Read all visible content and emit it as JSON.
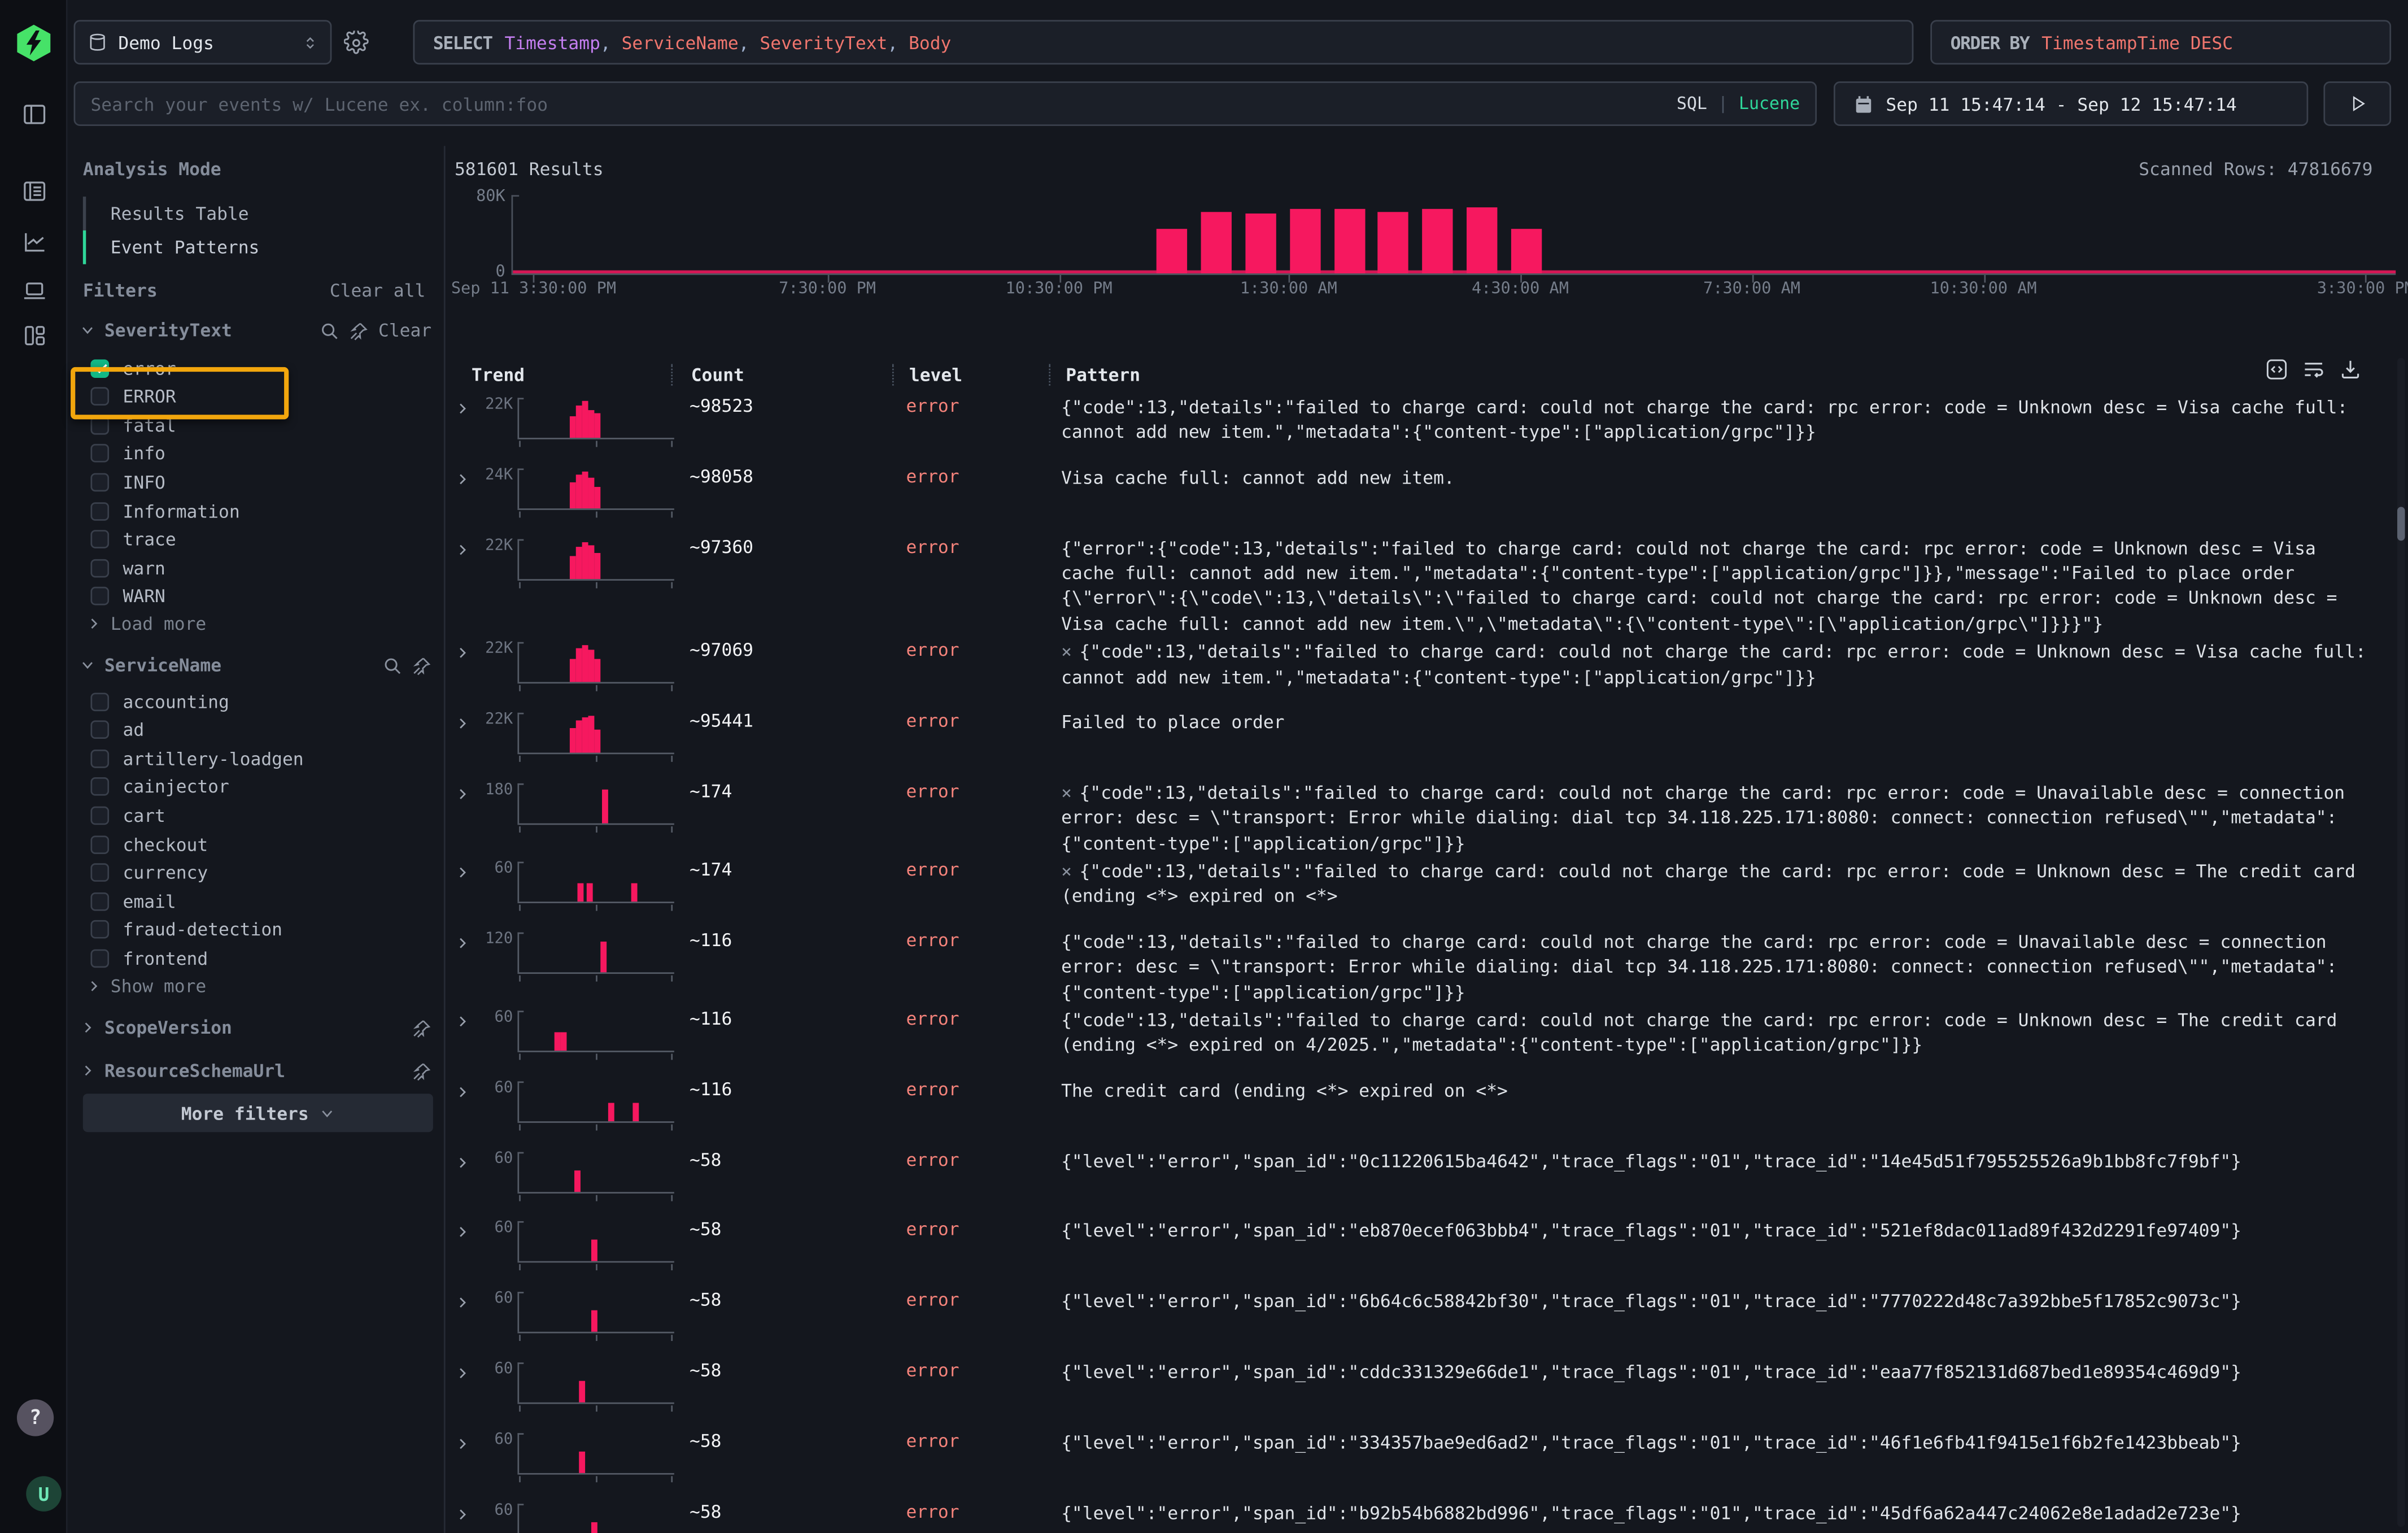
{
  "topbar": {
    "source_label": "Demo Logs",
    "select_keyword": "SELECT",
    "select_separator": ", ",
    "select_columns": [
      {
        "text": "Timestamp",
        "color": "#c47ef0"
      },
      {
        "text": "ServiceName",
        "color": "#f0766e"
      },
      {
        "text": "SeverityText",
        "color": "#f0766e"
      },
      {
        "text": "Body",
        "color": "#f0766e"
      }
    ],
    "orderby_keyword": "ORDER BY",
    "orderby_value": "TimestampTime DESC",
    "search_placeholder": "Search your events w/ Lucene ex. column:foo",
    "lang_sql": "SQL",
    "lang_divider": "|",
    "lang_lucene": "Lucene",
    "date_range": "Sep 11 15:47:14 - Sep 12 15:47:14"
  },
  "rail": {
    "icons": [
      "sidebar-toggle",
      "logs-search",
      "chart-explorer",
      "client-sessions",
      "dashboards"
    ],
    "help_label": "?",
    "avatar_label": "U"
  },
  "left_panel": {
    "analysis_title": "Analysis Mode",
    "mode_items": [
      {
        "label": "Results Table",
        "active": false
      },
      {
        "label": "Event Patterns",
        "active": true
      }
    ],
    "filters_title": "Filters",
    "clear_all": "Clear all",
    "severity": {
      "name": "SeverityText",
      "clear_label": "Clear",
      "more_label": "Load more",
      "options": [
        {
          "label": "error",
          "checked": true
        },
        {
          "label": "ERROR",
          "checked": false
        },
        {
          "label": "fatal",
          "checked": false
        },
        {
          "label": "info",
          "checked": false
        },
        {
          "label": "INFO",
          "checked": false
        },
        {
          "label": "Information",
          "checked": false
        },
        {
          "label": "trace",
          "checked": false
        },
        {
          "label": "warn",
          "checked": false
        },
        {
          "label": "WARN",
          "checked": false
        }
      ]
    },
    "service": {
      "name": "ServiceName",
      "more_label": "Show more",
      "options": [
        {
          "label": "accounting",
          "checked": false
        },
        {
          "label": "ad",
          "checked": false
        },
        {
          "label": "artillery-loadgen",
          "checked": false
        },
        {
          "label": "cainjector",
          "checked": false
        },
        {
          "label": "cart",
          "checked": false
        },
        {
          "label": "checkout",
          "checked": false
        },
        {
          "label": "currency",
          "checked": false
        },
        {
          "label": "email",
          "checked": false
        },
        {
          "label": "fraud-detection",
          "checked": false
        },
        {
          "label": "frontend",
          "checked": false
        }
      ]
    },
    "scope": {
      "name": "ScopeVersion"
    },
    "resource": {
      "name": "ResourceSchemaUrl"
    },
    "more_filters": "More filters"
  },
  "results": {
    "count_label": "581601 Results",
    "scanned_label": "Scanned Rows: 47816679"
  },
  "chart_data": {
    "type": "bar",
    "title": "581601 Results",
    "xlabel": "",
    "ylabel": "",
    "ylim": [
      0,
      80000
    ],
    "y_ticks": [
      "80K",
      "0"
    ],
    "grid": false,
    "legend": "none",
    "bar_color": "#f6185f",
    "x_ticks": [
      {
        "label": "Sep 11 3:30:00 PM",
        "pos": 1.1
      },
      {
        "label": "7:30:00 PM",
        "pos": 16.7
      },
      {
        "label": "10:30:00 PM",
        "pos": 29.0
      },
      {
        "label": "1:30:00 AM",
        "pos": 41.2
      },
      {
        "label": "4:30:00 AM",
        "pos": 53.5
      },
      {
        "label": "7:30:00 AM",
        "pos": 65.8
      },
      {
        "label": "10:30:00 AM",
        "pos": 78.1
      },
      {
        "label": "3:30:00 PM",
        "pos": 98.4
      }
    ],
    "bars": [
      {
        "x": "Sep 11 11:45 PM",
        "value": 46000,
        "pos": 34.2
      },
      {
        "x": "Sep 12 12:20 AM",
        "value": 63000,
        "pos": 36.55
      },
      {
        "x": "Sep 12 12:55 AM",
        "value": 61000,
        "pos": 38.9
      },
      {
        "x": "Sep 12 1:30 AM",
        "value": 66000,
        "pos": 41.25
      },
      {
        "x": "Sep 12 2:05 AM",
        "value": 66000,
        "pos": 43.6
      },
      {
        "x": "Sep 12 2:40 AM",
        "value": 63000,
        "pos": 45.95
      },
      {
        "x": "Sep 12 3:15 AM",
        "value": 66000,
        "pos": 48.3
      },
      {
        "x": "Sep 12 3:50 AM",
        "value": 68000,
        "pos": 50.65
      },
      {
        "x": "Sep 12 4:25 AM",
        "value": 46000,
        "pos": 53.0
      }
    ],
    "bar_width_pct": 1.63,
    "note": "thin residual count line along entire baseline"
  },
  "table": {
    "columns": [
      "Trend",
      "Count",
      "level",
      "Pattern"
    ],
    "toolbar_icons": [
      "code-icon",
      "wrap-text-icon",
      "download-icon"
    ],
    "rows": [
      {
        "trend_max": "22K",
        "bars": [
          [
            33,
            14
          ],
          [
            37,
            21
          ],
          [
            41,
            24
          ],
          [
            45,
            18
          ],
          [
            49,
            16
          ]
        ],
        "count": "~98523",
        "level": "error",
        "prefix": "",
        "pattern": "{\"code\":13,\"details\":\"failed to charge card: could not charge the card: rpc error: code = Unknown desc = Visa cache full: cannot add new item.\",\"metadata\":{\"content-type\":[\"application/grpc\"]}}"
      },
      {
        "trend_max": "24K",
        "bars": [
          [
            33,
            17
          ],
          [
            37,
            22
          ],
          [
            41,
            24
          ],
          [
            45,
            20
          ],
          [
            49,
            14
          ]
        ],
        "count": "~98058",
        "level": "error",
        "prefix": "",
        "pattern": "Visa cache full: cannot add new item."
      },
      {
        "trend_max": "22K",
        "bars": [
          [
            33,
            15
          ],
          [
            37,
            21
          ],
          [
            41,
            24
          ],
          [
            45,
            22
          ],
          [
            49,
            17
          ]
        ],
        "count": "~97360",
        "level": "error",
        "prefix": "",
        "pattern": "{\"error\":{\"code\":13,\"details\":\"failed to charge card: could not charge the card: rpc error: code = Unknown desc = Visa cache full: cannot add new item.\",\"metadata\":{\"content-type\":[\"application/grpc\"]}},\"message\":\"Failed to place order {\\\"error\\\":{\\\"code\\\":13,\\\"details\\\":\\\"failed to charge card: could not charge the card: rpc error: code = Unknown desc = Visa cache full: cannot add new item.\\\",\\\"metadata\\\":{\\\"content-type\\\":[\\\"application/grpc\\\"]}}}\"}"
      },
      {
        "trend_max": "22K",
        "bars": [
          [
            33,
            15
          ],
          [
            37,
            22
          ],
          [
            41,
            24
          ],
          [
            45,
            21
          ],
          [
            49,
            15
          ]
        ],
        "count": "~97069",
        "level": "error",
        "prefix": "×",
        "pattern": "{\"code\":13,\"details\":\"failed to charge card: could not charge the card: rpc error: code = Unknown desc = Visa cache full: cannot add new item.\",\"metadata\":{\"content-type\":[\"application/grpc\"]}}"
      },
      {
        "trend_max": "22K",
        "bars": [
          [
            33,
            16
          ],
          [
            37,
            21
          ],
          [
            41,
            23
          ],
          [
            45,
            24
          ],
          [
            49,
            15
          ]
        ],
        "count": "~95441",
        "level": "error",
        "prefix": "",
        "pattern": "Failed to place order"
      },
      {
        "trend_max": "180",
        "bars": [
          [
            55,
            22
          ]
        ],
        "count": "~174",
        "level": "error",
        "prefix": "×",
        "pattern": "{\"code\":13,\"details\":\"failed to charge card: could not charge the card: rpc error: code = Unavailable desc = connection error: desc = \\\"transport: Error while dialing: dial tcp 34.118.225.171:8080: connect: connection refused\\\"\",\"metadata\":{\"content-type\":[\"application/grpc\"]}}"
      },
      {
        "trend_max": "60",
        "bars": [
          [
            38,
            12
          ],
          [
            44,
            12
          ],
          [
            74,
            12
          ]
        ],
        "count": "~174",
        "level": "error",
        "prefix": "×",
        "pattern": "{\"code\":13,\"details\":\"failed to charge card: could not charge the card: rpc error: code = Unknown desc = The credit card (ending <*> expired on <*>"
      },
      {
        "trend_max": "120",
        "bars": [
          [
            54,
            20
          ]
        ],
        "count": "~116",
        "level": "error",
        "prefix": "",
        "pattern": "{\"code\":13,\"details\":\"failed to charge card: could not charge the card: rpc error: code = Unavailable desc = connection error: desc = \\\"transport: Error while dialing: dial tcp 34.118.225.171:8080: connect: connection refused\\\"\",\"metadata\":{\"content-type\":[\"application/grpc\"]}}"
      },
      {
        "trend_max": "60",
        "bars": [
          [
            23,
            12
          ],
          [
            27,
            12
          ]
        ],
        "count": "~116",
        "level": "error",
        "prefix": "",
        "pattern": "{\"code\":13,\"details\":\"failed to charge card: could not charge the card: rpc error: code = Unknown desc = The credit card (ending <*> expired on 4/2025.\",\"metadata\":{\"content-type\":[\"application/grpc\"]}}"
      },
      {
        "trend_max": "60",
        "bars": [
          [
            59,
            12
          ],
          [
            75,
            12
          ]
        ],
        "count": "~116",
        "level": "error",
        "prefix": "",
        "pattern": "The credit card (ending <*> expired on <*>"
      },
      {
        "trend_max": "60",
        "bars": [
          [
            36,
            14
          ]
        ],
        "count": "~58",
        "level": "error",
        "prefix": "",
        "pattern": "{\"level\":\"error\",\"span_id\":\"0c11220615ba4642\",\"trace_flags\":\"01\",\"trace_id\":\"14e45d51f795525526a9b1bb8fc7f9bf\"}"
      },
      {
        "trend_max": "60",
        "bars": [
          [
            47,
            14
          ]
        ],
        "count": "~58",
        "level": "error",
        "prefix": "",
        "pattern": "{\"level\":\"error\",\"span_id\":\"eb870ecef063bbb4\",\"trace_flags\":\"01\",\"trace_id\":\"521ef8dac011ad89f432d2291fe97409\"}"
      },
      {
        "trend_max": "60",
        "bars": [
          [
            47,
            14
          ]
        ],
        "count": "~58",
        "level": "error",
        "prefix": "",
        "pattern": "{\"level\":\"error\",\"span_id\":\"6b64c6c58842bf30\",\"trace_flags\":\"01\",\"trace_id\":\"7770222d48c7a392bbe5f17852c9073c\"}"
      },
      {
        "trend_max": "60",
        "bars": [
          [
            39,
            14
          ]
        ],
        "count": "~58",
        "level": "error",
        "prefix": "",
        "pattern": "{\"level\":\"error\",\"span_id\":\"cddc331329e66de1\",\"trace_flags\":\"01\",\"trace_id\":\"eaa77f852131d687bed1e89354c469d9\"}"
      },
      {
        "trend_max": "60",
        "bars": [
          [
            39,
            14
          ]
        ],
        "count": "~58",
        "level": "error",
        "prefix": "",
        "pattern": "{\"level\":\"error\",\"span_id\":\"334357bae9ed6ad2\",\"trace_flags\":\"01\",\"trace_id\":\"46f1e6fb41f9415e1f6b2fe1423bbeab\"}"
      },
      {
        "trend_max": "60",
        "bars": [
          [
            47,
            14
          ]
        ],
        "count": "~58",
        "level": "error",
        "prefix": "",
        "pattern": "{\"level\":\"error\",\"span_id\":\"b92b54b6882bd996\",\"trace_flags\":\"01\",\"trace_id\":\"45df6a62a447c24062e8e1adad2e723e\"}"
      }
    ]
  },
  "colors": {
    "accent_pink": "#f6185f",
    "error_text": "#f5837b",
    "green": "#2fd79a",
    "checkbox_green": "#12b886",
    "annotation_yellow": "#f2a60d",
    "keyword_purple": "#c47ef0",
    "token_salmon": "#f0766e",
    "logo_green": "#46e268"
  }
}
